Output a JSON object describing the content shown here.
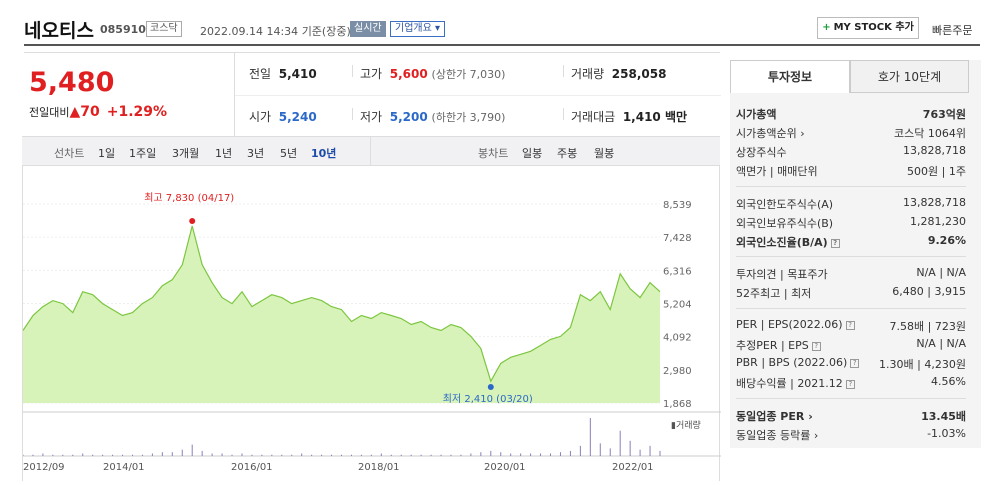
{
  "header": {
    "name": "네오티스",
    "code": "085910",
    "market": "코스닥",
    "date": "2022.09.14 14:34",
    "basis": "기준(장중)",
    "realtime": "실시간",
    "company_overview": "기업개요",
    "mystock": "MY STOCK 추가",
    "quick_order": "빠른주문"
  },
  "price": {
    "current": "5,480",
    "change_label": "전일대비",
    "change": "▲70",
    "change_pct": "+1.29%"
  },
  "stats": {
    "prev_label": "전일",
    "prev": "5,410",
    "high_label": "고가",
    "high": "5,600",
    "upper_limit": "(상한가 7,030)",
    "volume_label": "거래량",
    "volume": "258,058",
    "open_label": "시가",
    "open": "5,240",
    "low_label": "저가",
    "low": "5,200",
    "lower_limit": "(하한가 3,790)",
    "amount_label": "거래대금",
    "amount": "1,410 백만"
  },
  "tabs": {
    "line_label": "선차트",
    "line_periods": [
      "1일",
      "1주일",
      "3개월",
      "1년",
      "3년",
      "5년",
      "10년"
    ],
    "selected": "10년",
    "candle_label": "봉차트",
    "candle_periods": [
      "일봉",
      "주봉",
      "월봉"
    ]
  },
  "chart_data": {
    "type": "area",
    "title": "",
    "x_tick_labels": [
      "2012/09",
      "2014/01",
      "2016/01",
      "2018/01",
      "2020/01",
      "2022/01"
    ],
    "y_tick_labels": [
      "8,539",
      "7,428",
      "6,316",
      "5,204",
      "4,092",
      "2,980",
      "1,868"
    ],
    "ylim": [
      1868,
      8539
    ],
    "annotations": [
      {
        "label": "최고 7,830 (04/17)",
        "value": 7830
      },
      {
        "label": "최저 2,410 (03/20)",
        "value": 2410
      }
    ],
    "volume_label": "거래량",
    "series": [
      {
        "values": [
          4300,
          4800,
          5100,
          5300,
          5200,
          4900,
          5600,
          5500,
          5200,
          5000,
          4800,
          4900,
          5200,
          5400,
          5800,
          6000,
          6500,
          7800,
          6500,
          5900,
          5400,
          5200,
          5600,
          5100,
          5300,
          5500,
          5400,
          5200,
          5300,
          5400,
          5300,
          5100,
          5000,
          4600,
          4800,
          4700,
          4900,
          4800,
          4700,
          4500,
          4600,
          4400,
          4300,
          4500,
          4400,
          4100,
          3700,
          2600,
          3200,
          3400,
          3500,
          3600,
          3800,
          4000,
          4100,
          4400,
          5500,
          5300,
          5600,
          5000,
          6200,
          5700,
          5400,
          5900,
          5600
        ]
      }
    ],
    "volume": [
      1,
      1,
      2,
      1,
      1,
      1,
      2,
      1,
      1,
      1,
      1,
      1,
      1,
      2,
      3,
      3,
      5,
      9,
      4,
      2,
      2,
      1,
      2,
      1,
      1,
      1,
      1,
      1,
      2,
      1,
      1,
      1,
      1,
      1,
      1,
      1,
      2,
      1,
      1,
      1,
      1,
      1,
      1,
      1,
      1,
      2,
      3,
      4,
      3,
      2,
      2,
      2,
      2,
      2,
      3,
      4,
      8,
      30,
      10,
      6,
      20,
      12,
      5,
      8,
      4
    ]
  },
  "invest": {
    "tab_info": "투자정보",
    "tab_hoga": "호가 10단계",
    "mcap_label": "시가총액",
    "mcap": "763억원",
    "mcap_rank_label": "시가총액순위",
    "mcap_rank": "코스닥 1064위",
    "shares_label": "상장주식수",
    "shares": "13,828,718",
    "face_label": "액면가",
    "unit_label": "매매단위",
    "face": "500원",
    "unit": "1주",
    "foreign_limit_label": "외국인한도주식수(A)",
    "foreign_limit": "13,828,718",
    "foreign_hold_label": "외국인보유주식수(B)",
    "foreign_hold": "1,281,230",
    "foreign_ratio_label": "외국인소진율(B/A)",
    "foreign_ratio": "9.26%",
    "opinion_label": "투자의견",
    "target_label": "목표주가",
    "opinion": "N/A",
    "target": "N/A",
    "w52_label": "52주최고",
    "w52_low_label": "최저",
    "w52_high": "6,480",
    "w52_low": "3,915",
    "per_label": "PER",
    "eps_label": "EPS(2022.06)",
    "per": "7.58배",
    "eps": "723원",
    "est_per_label": "추정PER",
    "est_eps_label": "EPS",
    "est_per": "N/A",
    "est_eps": "N/A",
    "pbr_label": "PBR",
    "bps_label": "BPS (2022.06)",
    "pbr": "1.30배",
    "bps": "4,230원",
    "div_label": "배당수익률",
    "div_date": "2021.12",
    "div": "4.56%",
    "sector_per_label": "동일업종 PER",
    "sector_per": "13.45배",
    "sector_rate_label": "동일업종 등락률",
    "sector_rate": "-1.03%"
  }
}
